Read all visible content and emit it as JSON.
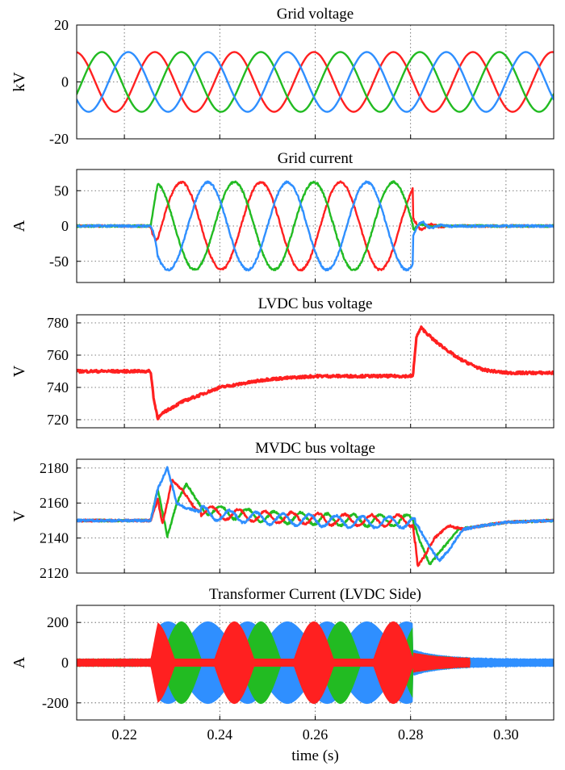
{
  "chart_data": [
    {
      "type": "line",
      "title": "Grid voltage",
      "ylabel": "kV",
      "xlim": [
        0.21,
        0.31
      ],
      "ylim": [
        -20,
        20
      ],
      "yticks": [
        -20,
        0,
        20
      ],
      "grid": true,
      "series": [
        {
          "color": "#ff2020",
          "signal": "sine",
          "amplitude": 10.5,
          "frequency_hz": 60,
          "phase_deg": -120,
          "values_at_x": {
            "x": [
              0.21,
              0.22,
              0.24,
              0.26,
              0.28,
              0.3,
              0.31
            ],
            "y": [
              9.1,
              9.1,
              9.1,
              9.1,
              9.1,
              9.1,
              9.1
            ]
          }
        },
        {
          "color": "#22bb22",
          "signal": "sine",
          "amplitude": 10.5,
          "frequency_hz": 60,
          "phase_deg": 120,
          "values_at_x": {
            "x": [
              0.21,
              0.22,
              0.24,
              0.26,
              0.28,
              0.3,
              0.31
            ],
            "y": [
              -9.1,
              -9.1,
              -9.1,
              -9.1,
              -9.1,
              -9.1,
              -9.1
            ]
          }
        },
        {
          "color": "#2f8fff",
          "signal": "sine",
          "amplitude": 10.5,
          "frequency_hz": 60,
          "phase_deg": 0,
          "values_at_x": {
            "x": [
              0.21,
              0.22,
              0.24,
              0.26,
              0.28,
              0.3,
              0.31
            ],
            "y": [
              0,
              0,
              0,
              0,
              0,
              0,
              0
            ]
          }
        }
      ]
    },
    {
      "type": "line",
      "title": "Grid current",
      "ylabel": "A",
      "xlim": [
        0.21,
        0.31
      ],
      "ylim": [
        -80,
        80
      ],
      "yticks": [
        -50,
        0,
        50
      ],
      "grid": true,
      "event_start": 0.2255,
      "event_end": 0.2805,
      "series": [
        {
          "color": "#ff2020",
          "signal": "sine-burst",
          "amplitude": 62,
          "frequency_hz": 60,
          "phase_deg": 120,
          "baseline": 0
        },
        {
          "color": "#22bb22",
          "signal": "sine-burst",
          "amplitude": 62,
          "frequency_hz": 60,
          "phase_deg": -120,
          "baseline": 0
        },
        {
          "color": "#2f8fff",
          "signal": "sine-burst",
          "amplitude": 62,
          "frequency_hz": 60,
          "phase_deg": 0,
          "baseline": 0
        }
      ]
    },
    {
      "type": "line",
      "title": "LVDC bus voltage",
      "ylabel": "V",
      "xlim": [
        0.21,
        0.31
      ],
      "ylim": [
        715,
        785
      ],
      "yticks": [
        720,
        740,
        760,
        780
      ],
      "grid": true,
      "series": [
        {
          "color": "#ff2020",
          "x": [
            0.21,
            0.2255,
            0.2262,
            0.227,
            0.2285,
            0.232,
            0.24,
            0.25,
            0.26,
            0.27,
            0.2805,
            0.2812,
            0.2822,
            0.285,
            0.29,
            0.295,
            0.3,
            0.31
          ],
          "y": [
            750,
            750,
            732,
            721,
            725,
            731,
            740,
            745,
            747,
            747,
            747,
            771,
            777,
            769,
            758,
            751,
            749,
            749
          ]
        }
      ]
    },
    {
      "type": "line",
      "title": "MVDC bus voltage",
      "ylabel": "V",
      "xlim": [
        0.21,
        0.31
      ],
      "ylim": [
        2120,
        2185
      ],
      "yticks": [
        2120,
        2140,
        2160,
        2180
      ],
      "grid": true,
      "series": [
        {
          "color": "#22bb22",
          "x": [
            0.21,
            0.2255,
            0.227,
            0.229,
            0.231,
            0.233,
            0.236,
            0.24,
            0.25,
            0.26,
            0.27,
            0.2805,
            0.282,
            0.284,
            0.287,
            0.29,
            0.295,
            0.3,
            0.31
          ],
          "y": [
            2150,
            2150,
            2168,
            2141,
            2160,
            2171,
            2158,
            2155,
            2152,
            2151,
            2150,
            2150,
            2138,
            2125,
            2135,
            2145,
            2147,
            2149,
            2150
          ]
        },
        {
          "color": "#ff2020",
          "x": [
            0.21,
            0.2255,
            0.227,
            0.228,
            0.23,
            0.232,
            0.235,
            0.24,
            0.25,
            0.26,
            0.27,
            0.2805,
            0.2815,
            0.283,
            0.285,
            0.288,
            0.291,
            0.295,
            0.3,
            0.31
          ],
          "y": [
            2150,
            2150,
            2162,
            2148,
            2173,
            2168,
            2156,
            2154,
            2152,
            2151,
            2150,
            2150,
            2124,
            2130,
            2140,
            2147,
            2145,
            2147,
            2149,
            2150
          ]
        },
        {
          "color": "#2f8fff",
          "x": [
            0.21,
            0.2255,
            0.227,
            0.229,
            0.231,
            0.233,
            0.236,
            0.24,
            0.25,
            0.26,
            0.27,
            0.2805,
            0.2815,
            0.284,
            0.286,
            0.288,
            0.291,
            0.295,
            0.3,
            0.31
          ],
          "y": [
            2150,
            2150,
            2168,
            2180,
            2160,
            2157,
            2155,
            2153,
            2151,
            2150,
            2149,
            2149,
            2147,
            2135,
            2127,
            2133,
            2145,
            2147,
            2149,
            2150
          ]
        }
      ]
    },
    {
      "type": "area",
      "title": "Transformer Current (LVDC Side)",
      "ylabel": "A",
      "xlabel": "time (s)",
      "xlim": [
        0.21,
        0.31
      ],
      "ylim": [
        -285,
        285
      ],
      "yticks": [
        -200,
        0,
        200
      ],
      "xticks": [
        0.22,
        0.24,
        0.26,
        0.28,
        0.3
      ],
      "xtick_labels": [
        "0.22",
        "0.24",
        "0.26",
        "0.28",
        "0.30"
      ],
      "grid": true,
      "event_start": 0.2255,
      "event_end": 0.2805,
      "pre_event_envelope_A": 20,
      "peak_envelope_A": 205,
      "series": [
        {
          "color": "#2f8fff",
          "envelope": "full-width switching band"
        },
        {
          "color": "#22bb22",
          "envelope": "60 Hz modulated lobes"
        },
        {
          "color": "#ff2020",
          "envelope": "60 Hz modulated lobes"
        }
      ]
    }
  ]
}
